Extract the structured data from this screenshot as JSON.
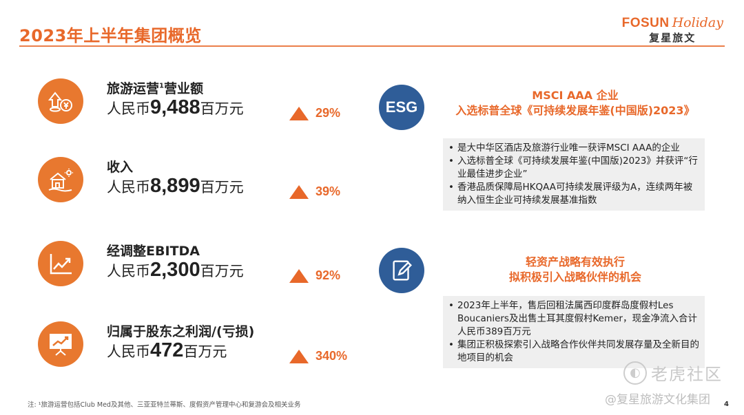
{
  "page": {
    "title": "2023年上半年集团概览",
    "page_number": "4",
    "footnote": "注: ¹旅游运营包括Club Med及其他、三亚亚特兰蒂斯、度假资产管理中心和复游会及相关业务"
  },
  "logo": {
    "brand_en": "FOSUN",
    "brand_script": "Holiday",
    "brand_cn": "复星旅文"
  },
  "metrics": [
    {
      "label": "旅游运营",
      "label_sup": "1",
      "label_suffix": "营业额",
      "prefix": "人民币",
      "value": "9,488",
      "unit": "百万元",
      "change": "29%",
      "icon": "coins-growth-icon"
    },
    {
      "label": "收入",
      "prefix": "人民币",
      "value": "8,899",
      "unit": "百万元",
      "change": "39%",
      "icon": "resort-house-icon"
    },
    {
      "label": "经调整EBITDA",
      "prefix": "人民币",
      "value": "2,300",
      "unit": "百万元",
      "change": "92%",
      "icon": "line-chart-icon"
    },
    {
      "label": "归属于股东之利润/(亏损)",
      "prefix": "人民币",
      "value": "472",
      "unit": "百万元",
      "change": "340%",
      "icon": "presentation-board-icon"
    }
  ],
  "esg": {
    "icon_text": "ESG",
    "heading_line1": "MSCI AAA 企业",
    "heading_line2": "入选标普全球《可持续发展年鉴(中国版)2023》",
    "bullets": [
      "是大中华区酒店及旅游行业唯一获评MSCI AAA的企业",
      "入选标普全球《可持续发展年鉴(中国版)2023》并获评“行业最佳进步企业”",
      "香港品质保障局HKQAA可持续发展评级为A，连续两年被纳入恒生企业可持续发展基准指数"
    ]
  },
  "strategy": {
    "icon": "document-edit-icon",
    "heading_line1": "轻资产战略有效执行",
    "heading_line2": "拟积极引入战略伙伴的机会",
    "bullets": [
      "2023年上半年，售后回租法属西印度群岛度假村Les Boucaniers及出售土耳其度假村Kemer，现金净流入合计人民币389百万元",
      "集团正积极探索引入战略合作伙伴共同发展存量及全新目的地项目的机会"
    ]
  },
  "watermark": {
    "line1": "老虎社区",
    "line2": "@复星旅游文化集团"
  },
  "colors": {
    "accent": "#e8682a",
    "icon_orange": "#e8782f",
    "icon_blue": "#2f5d98",
    "box_bg": "#efefef"
  }
}
